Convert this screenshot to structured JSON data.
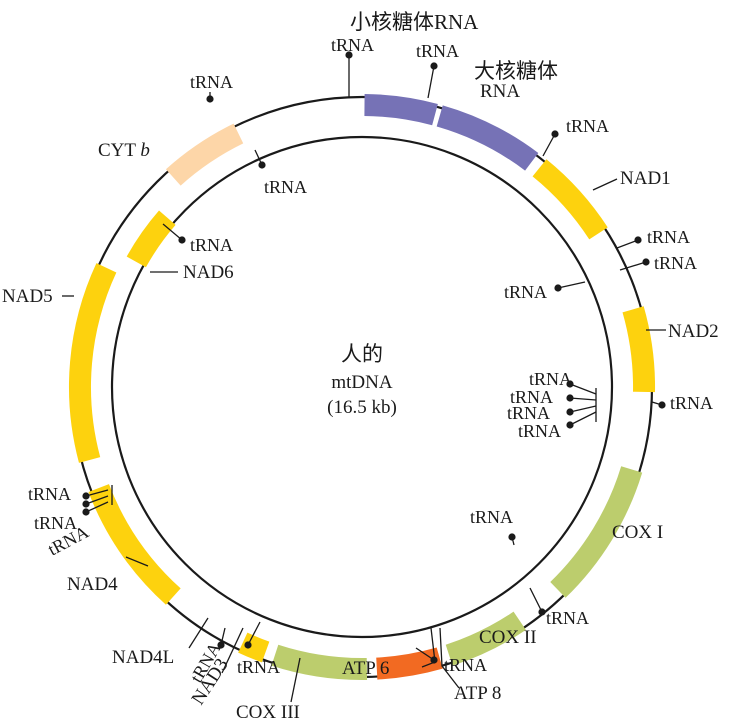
{
  "center": {
    "line1": "人的",
    "line2": "mtDNA",
    "line3": "(16.5 kb)"
  },
  "colors": {
    "rrna": "#7672b6",
    "nad": "#fdd20e",
    "cox": "#bccd6d",
    "atp": "#f26a22",
    "cyt": "#fdd6a8",
    "line": "#1a1a1a"
  },
  "labels": {
    "small_rrna": "小核糖体RNA",
    "large_rrna_1": "大核糖体",
    "large_rrna_2": "RNA",
    "nad1": "NAD1",
    "nad2": "NAD2",
    "cox1": "COX I",
    "cox2": "COX II",
    "atp6": "ATP 6",
    "atp8": "ATP 8",
    "cox3": "COX III",
    "nad3": "NAD3",
    "nad4l": "NAD4L",
    "nad4": "NAD4",
    "nad5": "NAD5",
    "nad6": "NAD6",
    "cyt_b_1": "CYT",
    "cyt_b_2": "b",
    "trna": "tRNA"
  }
}
